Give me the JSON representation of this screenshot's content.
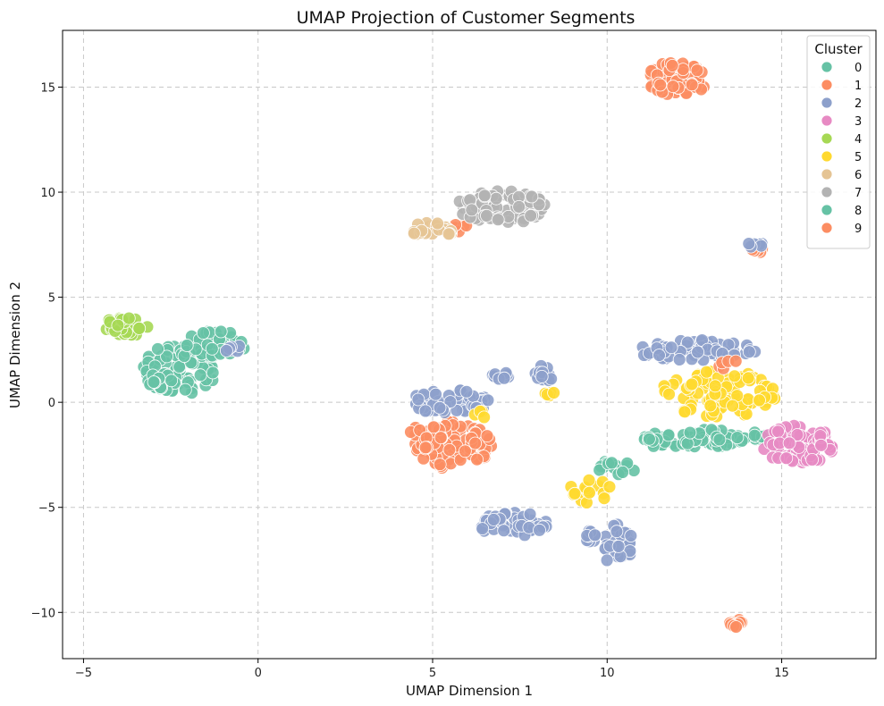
{
  "chart_data": {
    "type": "scatter",
    "title": "UMAP Projection of Customer Segments",
    "xlabel": "UMAP Dimension 1",
    "ylabel": "UMAP Dimension 2",
    "xlim": [
      -5.6,
      17.7
    ],
    "ylim": [
      -12.2,
      17.7
    ],
    "xticks": [
      -5,
      0,
      5,
      10,
      15
    ],
    "yticks": [
      -10,
      -5,
      0,
      5,
      10,
      15
    ],
    "xtick_labels": [
      "−5",
      "0",
      "5",
      "10",
      "15"
    ],
    "ytick_labels": [
      "−10",
      "−5",
      "0",
      "5",
      "10",
      "15"
    ],
    "grid": true,
    "legend": {
      "title": "Cluster",
      "placement": "top-right",
      "entries": [
        {
          "label": "0",
          "color": "#66c2a5"
        },
        {
          "label": "1",
          "color": "#fc8d62"
        },
        {
          "label": "2",
          "color": "#8da0cb"
        },
        {
          "label": "3",
          "color": "#e78ac3"
        },
        {
          "label": "4",
          "color": "#a6d854"
        },
        {
          "label": "5",
          "color": "#ffd92f"
        },
        {
          "label": "6",
          "color": "#e5c494"
        },
        {
          "label": "7",
          "color": "#b3b3b3"
        },
        {
          "label": "8",
          "color": "#66c2a5"
        },
        {
          "label": "9",
          "color": "#fc8d62"
        }
      ]
    },
    "clusters": [
      {
        "cluster": "0",
        "color": "#66c2a5",
        "regions": [
          {
            "cx": -2.2,
            "cy": 1.6,
            "rx": 1.1,
            "ry": 1.2,
            "n": 90
          },
          {
            "cx": -1.2,
            "cy": 2.8,
            "rx": 0.9,
            "ry": 0.6,
            "n": 40
          },
          {
            "cx": 12.8,
            "cy": -1.7,
            "rx": 1.8,
            "ry": 0.45,
            "n": 70
          },
          {
            "cx": 10.3,
            "cy": -3.1,
            "rx": 0.6,
            "ry": 0.35,
            "n": 15
          }
        ]
      },
      {
        "cluster": "1",
        "color": "#fc8d62",
        "regions": [
          {
            "cx": 12.0,
            "cy": 15.4,
            "rx": 0.9,
            "ry": 0.8,
            "n": 70
          },
          {
            "cx": 5.6,
            "cy": -2.0,
            "rx": 1.1,
            "ry": 1.2,
            "n": 90
          },
          {
            "cx": 13.7,
            "cy": -10.5,
            "rx": 0.2,
            "ry": 0.2,
            "n": 12
          },
          {
            "cx": 5.5,
            "cy": 8.3,
            "rx": 0.6,
            "ry": 0.3,
            "n": 12
          },
          {
            "cx": 14.3,
            "cy": 7.2,
            "rx": 0.2,
            "ry": 0.2,
            "n": 6
          }
        ]
      },
      {
        "cluster": "2",
        "color": "#8da0cb",
        "regions": [
          {
            "cx": 12.5,
            "cy": 2.5,
            "rx": 1.8,
            "ry": 0.5,
            "n": 60
          },
          {
            "cx": 5.5,
            "cy": 0.0,
            "rx": 1.2,
            "ry": 0.6,
            "n": 55
          },
          {
            "cx": 7.3,
            "cy": -5.8,
            "rx": 1.0,
            "ry": 0.6,
            "n": 45
          },
          {
            "cx": 10.3,
            "cy": -6.8,
            "rx": 0.45,
            "ry": 1.0,
            "n": 35
          },
          {
            "cx": 8.2,
            "cy": 1.4,
            "rx": 0.3,
            "ry": 0.4,
            "n": 12
          },
          {
            "cx": 9.4,
            "cy": -6.4,
            "rx": 0.3,
            "ry": 0.4,
            "n": 10
          },
          {
            "cx": -0.8,
            "cy": 2.6,
            "rx": 0.3,
            "ry": 0.3,
            "n": 6
          },
          {
            "cx": 14.2,
            "cy": 7.5,
            "rx": 0.25,
            "ry": 0.15,
            "n": 6
          },
          {
            "cx": 7.0,
            "cy": 1.2,
            "rx": 0.4,
            "ry": 0.3,
            "n": 8
          }
        ]
      },
      {
        "cluster": "3",
        "color": "#e78ac3",
        "regions": [
          {
            "cx": 15.5,
            "cy": -2.0,
            "rx": 1.1,
            "ry": 0.9,
            "n": 80
          }
        ]
      },
      {
        "cluster": "4",
        "color": "#a6d854",
        "regions": [
          {
            "cx": -3.8,
            "cy": 3.6,
            "rx": 0.7,
            "ry": 0.45,
            "n": 35
          }
        ]
      },
      {
        "cluster": "5",
        "color": "#ffd92f",
        "regions": [
          {
            "cx": 13.2,
            "cy": 0.4,
            "rx": 1.7,
            "ry": 1.1,
            "n": 100
          },
          {
            "cx": 9.5,
            "cy": -4.2,
            "rx": 0.6,
            "ry": 0.6,
            "n": 18
          },
          {
            "cx": 8.4,
            "cy": 0.4,
            "rx": 0.2,
            "ry": 0.3,
            "n": 5
          },
          {
            "cx": 6.4,
            "cy": -0.6,
            "rx": 0.2,
            "ry": 0.2,
            "n": 4
          }
        ]
      },
      {
        "cluster": "6",
        "color": "#e5c494",
        "regions": [
          {
            "cx": 5.0,
            "cy": 8.2,
            "rx": 0.6,
            "ry": 0.4,
            "n": 25
          }
        ]
      },
      {
        "cluster": "7",
        "color": "#b3b3b3",
        "regions": [
          {
            "cx": 7.0,
            "cy": 9.3,
            "rx": 1.3,
            "ry": 0.8,
            "n": 80
          }
        ]
      },
      {
        "cluster": "8",
        "color": "#66c2a5",
        "regions": [
          {
            "cx": -2.8,
            "cy": 1.0,
            "rx": 0.4,
            "ry": 0.5,
            "n": 12
          },
          {
            "cx": 11.2,
            "cy": -1.9,
            "rx": 0.4,
            "ry": 0.3,
            "n": 8
          }
        ]
      },
      {
        "cluster": "9",
        "color": "#fc8d62",
        "regions": [
          {
            "cx": 4.8,
            "cy": -1.6,
            "rx": 0.5,
            "ry": 0.6,
            "n": 20
          },
          {
            "cx": 13.5,
            "cy": 1.8,
            "rx": 0.3,
            "ry": 0.3,
            "n": 5
          }
        ]
      }
    ]
  }
}
